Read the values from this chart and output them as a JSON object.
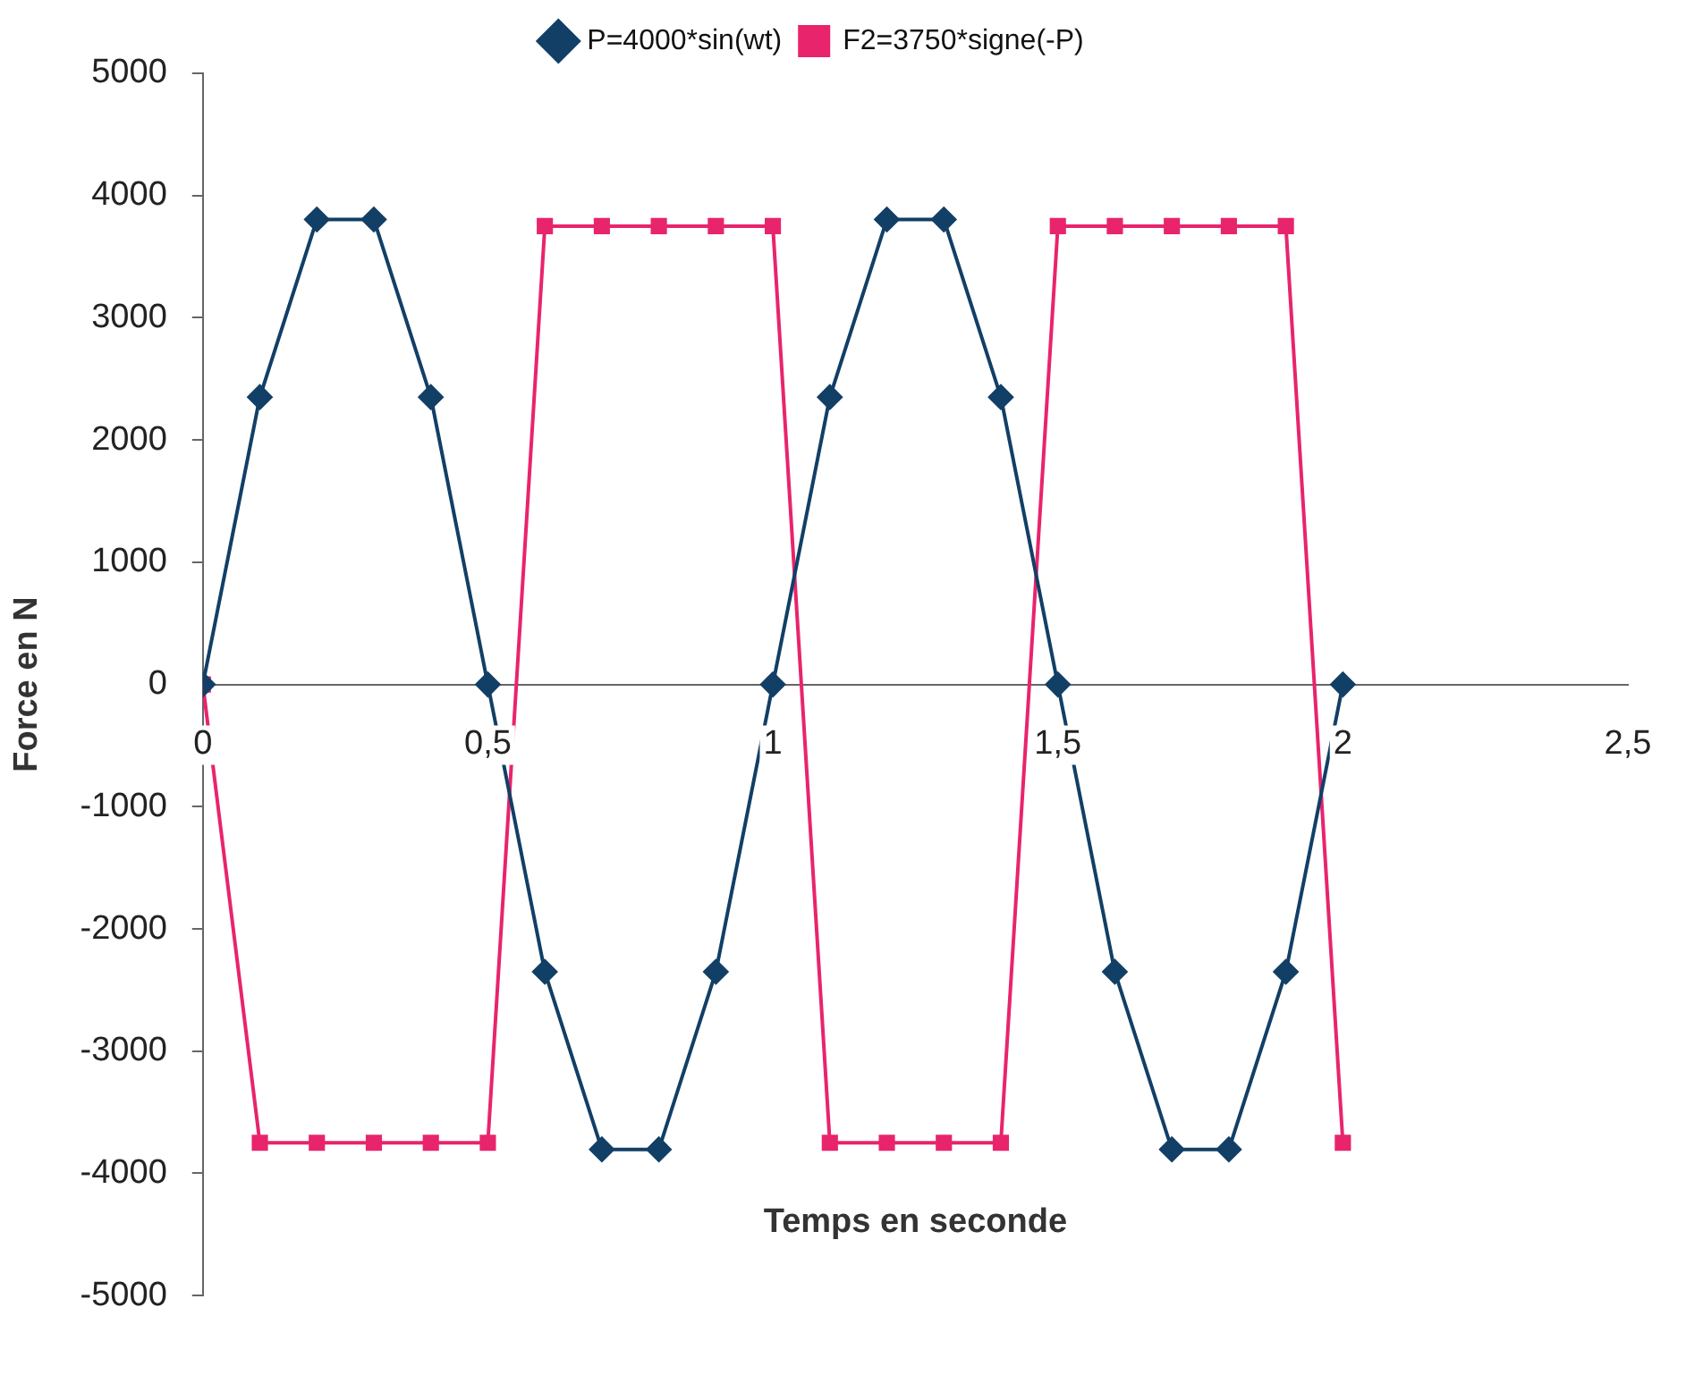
{
  "chart_data": {
    "type": "line",
    "xlabel": "Temps en seconde",
    "ylabel": "Force en N",
    "x": [
      0,
      0.1,
      0.2,
      0.3,
      0.4,
      0.5,
      0.6,
      0.7,
      0.8,
      0.9,
      1,
      1.1,
      1.2,
      1.3,
      1.4,
      1.5,
      1.6,
      1.7,
      1.8,
      1.9,
      2
    ],
    "series": [
      {
        "name": "P=4000*sin(wt)",
        "color": "#123f66",
        "marker": "diamond",
        "values": [
          0,
          2351,
          3804,
          3804,
          2351,
          0,
          -2351,
          -3804,
          -3804,
          -2351,
          0,
          2351,
          3804,
          3804,
          2351,
          0,
          -2351,
          -3804,
          -3804,
          -2351,
          0
        ]
      },
      {
        "name": "F2=3750*signe(-P)",
        "color": "#e8246c",
        "marker": "square",
        "values": [
          0,
          -3750,
          -3750,
          -3750,
          -3750,
          -3750,
          3750,
          3750,
          3750,
          3750,
          3750,
          -3750,
          -3750,
          -3750,
          -3750,
          3750,
          3750,
          3750,
          3750,
          3750,
          -3750
        ]
      }
    ],
    "xlim": [
      0,
      2.5
    ],
    "xticks": [
      0,
      {
        "value": 0.5,
        "label": "0,5"
      },
      1,
      {
        "value": 1.5,
        "label": "1,5"
      },
      2,
      {
        "value": 2.5,
        "label": "2,5"
      }
    ],
    "ylim": [
      -5000,
      5000
    ],
    "yticks": [
      -5000,
      -4000,
      -3000,
      -2000,
      -1000,
      0,
      1000,
      2000,
      3000,
      4000,
      5000
    ],
    "grid": false,
    "legend": "top",
    "line_style": "solid"
  }
}
